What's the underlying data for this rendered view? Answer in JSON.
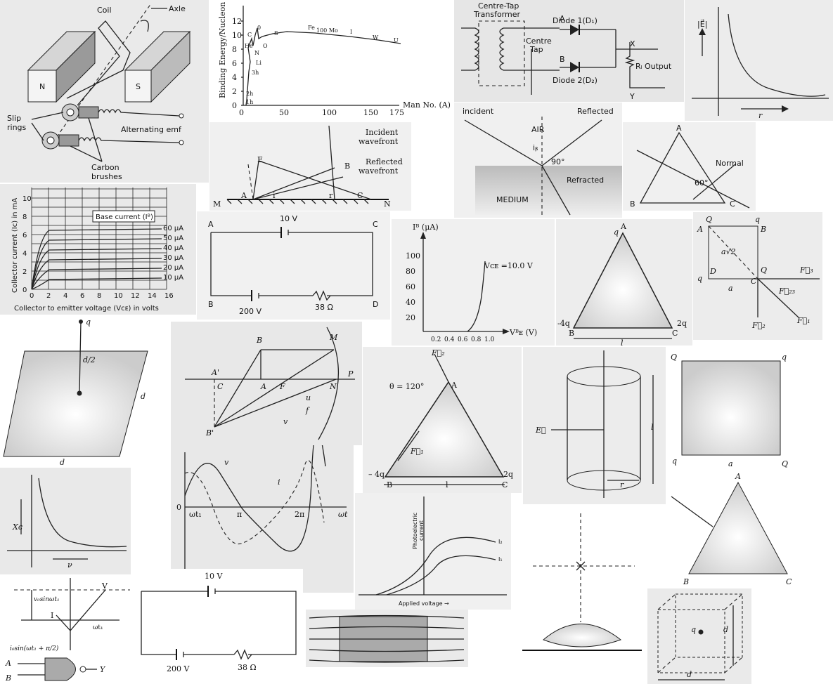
{
  "generator": {
    "coil": "Coil",
    "axle": "Axle",
    "n": "N",
    "s": "S",
    "slip_rings": "Slip\nrings",
    "emf": "Alternating emf",
    "brushes": "Carbon\nbrushes"
  },
  "binding": {
    "ylabel": "Binding Energy/Nucleon",
    "xlabel": "Man No. (A)",
    "yticks": [
      "0",
      "2",
      "4",
      "6",
      "8",
      "10",
      "12"
    ],
    "xticks": [
      "0",
      "50",
      "100",
      "150",
      "175"
    ],
    "labels": [
      "1h",
      "2h",
      "3h",
      "Li",
      "He",
      "C",
      "N",
      "O",
      "0",
      "S",
      "Fe",
      "100 Mo",
      "I",
      "W",
      "U"
    ]
  },
  "rectifier": {
    "title": "Centre-Tap\nTransformer",
    "d1": "Diode 1(D₁)",
    "d2": "Diode 2(D₂)",
    "a": "A",
    "b": "B",
    "centre": "Centre\nTap",
    "x": "X",
    "y": "Y",
    "rl": "Rₗ Output"
  },
  "efield": {
    "ylabel": "|E⃗|",
    "xlabel": "r"
  },
  "wavefront": {
    "incident": "Incident\nwavefront",
    "reflected": "Reflected\nwavefront",
    "m": "M",
    "n": "N",
    "a": "A",
    "c": "C",
    "e": "E",
    "b": "B",
    "i": "i",
    "r": "r"
  },
  "refraction": {
    "incident": "incident",
    "reflected": "Reflected",
    "air": "AIR",
    "angle90": "90°",
    "ib": "iᵦ",
    "refracted": "Refracted",
    "medium": "MEDIUM"
  },
  "prism1": {
    "a": "A",
    "b": "B",
    "c": "C",
    "normal": "Normal",
    "angle": "60°"
  },
  "transistor": {
    "ylabel": "Collector current (Iᴄ) in mA",
    "xlabel": "Collector to emitter voltage (Vᴄᴇ) in volts",
    "legend": "Base current (Iᴮ)",
    "yticks": [
      "0",
      "2",
      "4",
      "6",
      "8",
      "10"
    ],
    "xticks": [
      "0",
      "2",
      "4",
      "6",
      "8",
      "10",
      "12",
      "14",
      "16"
    ],
    "curves": [
      "60 μA",
      "50 μA",
      "40 μA",
      "30 μA",
      "20 μA",
      "10 μA"
    ]
  },
  "circuit1": {
    "v1": "10 V",
    "v2": "200 V",
    "r": "38 Ω",
    "a": "A",
    "b": "B",
    "c": "C",
    "d": "D"
  },
  "input_char": {
    "ylabel": "Iᴮ (μA)",
    "xlabel": "Vᴮᴇ (V)",
    "curve": "Vᴄᴇ =10.0 V",
    "yticks": [
      "20",
      "40",
      "60",
      "80",
      "100"
    ],
    "xticks": [
      "0.2",
      "0.4",
      "0.6",
      "0.8",
      "1.0"
    ]
  },
  "tri1": {
    "q": "q",
    "a": "A",
    "b": "B",
    "c": "C",
    "m4q": "-4q",
    "q2": "2q",
    "l": "l"
  },
  "square1": {
    "q": "Q",
    "a": "A",
    "b": "B",
    "d": "D",
    "q1": "q",
    "q2": "q",
    "q3": "q",
    "diag": "a√2",
    "side": "a",
    "f3": "F⃗₃",
    "f23": "F⃗₂₃",
    "f2": "F⃗₂",
    "f1": "F⃗₁",
    "qb": "Q",
    "c": "C"
  },
  "sheet": {
    "q": "q",
    "d2": "d/2",
    "d": "d",
    "d_bottom": "d"
  },
  "mirror": {
    "b": "B",
    "m": "M",
    "a1": "A'",
    "c": "C",
    "a": "A",
    "f": "F",
    "n": "N",
    "p": "P",
    "b1": "B'",
    "u": "u",
    "f_lbl": "f",
    "v": "v"
  },
  "tri2": {
    "f2": "F⃗₂",
    "theta": "θ = 120°",
    "a": "A",
    "f1": "F⃗₁",
    "m4q": "– 4q",
    "q2": "2q",
    "b": "B",
    "c": "C",
    "l": "l"
  },
  "cylinder": {
    "e": "E⃗",
    "l": "l",
    "r": "r"
  },
  "square2": {
    "q1": "Q",
    "q2": "q",
    "q3": "q",
    "q4": "Q",
    "a": "a"
  },
  "xc": {
    "ylabel": "Xᴄ",
    "xlabel": "ν"
  },
  "wave": {
    "v": "v",
    "i": "i",
    "o": "0",
    "wt1": "ωt₁",
    "pi": "π",
    "twopi": "2π",
    "wt": "ωt"
  },
  "photo": {
    "ylabel": "Photoelectric\ncurrent",
    "xlabel": "Applied voltage →",
    "i2": "I₂",
    "i1": "I₁"
  },
  "tri3": {
    "a": "A",
    "b": "B",
    "c": "C"
  },
  "phasor": {
    "v0": "v₀sinωt₁",
    "i0": "i₀sin(ωt₁ + π/2)",
    "v": "V",
    "i": "I",
    "wt": "ωt₁"
  },
  "circuit2": {
    "v1": "10 V",
    "v2": "200 V",
    "r": "38 Ω"
  },
  "gate": {
    "a": "A",
    "b": "B",
    "y": "Y"
  },
  "cube": {
    "q": "q",
    "d1": "d",
    "d2": "d"
  }
}
